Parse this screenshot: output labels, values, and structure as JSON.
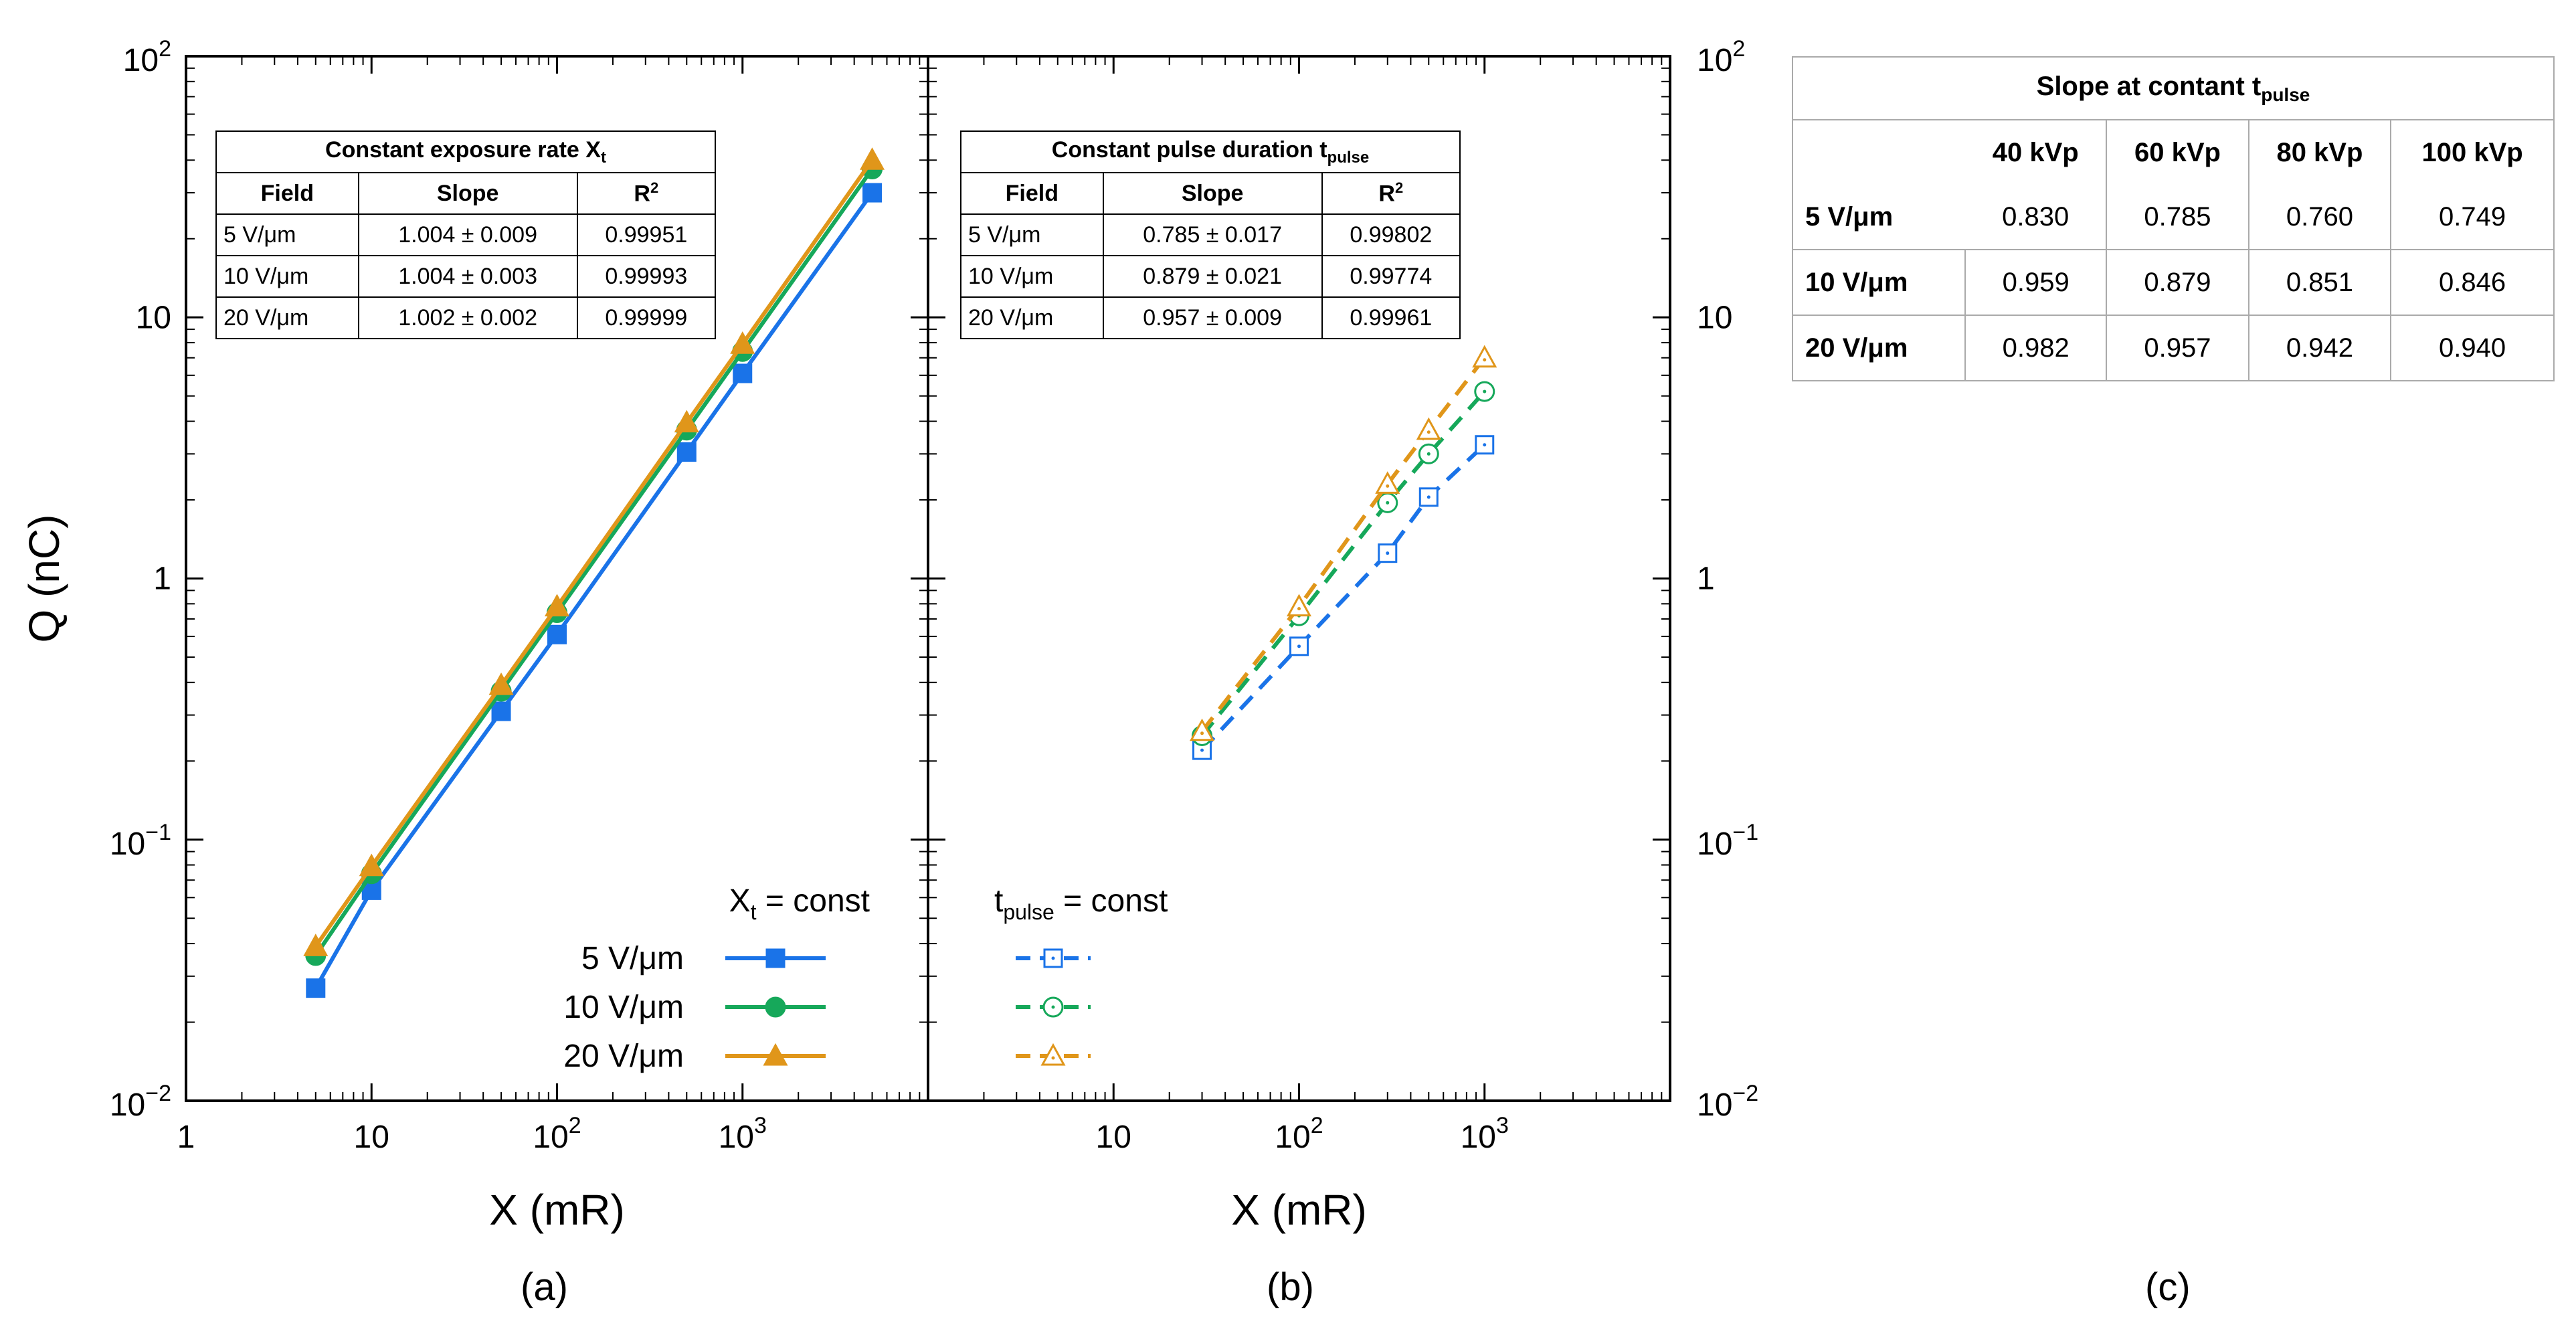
{
  "panel_labels": {
    "a": "(a)",
    "b": "(b)",
    "c": "(c)"
  },
  "axes": {
    "ylabel": "Q (nC)",
    "xlabel": "X (mR)",
    "yticks": [
      {
        "v": 0.01,
        "base": "10",
        "exp": "−2"
      },
      {
        "v": 0.1,
        "base": "10",
        "exp": "−1"
      },
      {
        "v": 1,
        "base": "1",
        "exp": ""
      },
      {
        "v": 10,
        "base": "10",
        "exp": ""
      },
      {
        "v": 100,
        "base": "10",
        "exp": "2"
      }
    ],
    "xticks_a": [
      {
        "v": 1,
        "base": "1",
        "exp": ""
      },
      {
        "v": 10,
        "base": "10",
        "exp": ""
      },
      {
        "v": 100,
        "base": "10",
        "exp": "2"
      },
      {
        "v": 1000,
        "base": "10",
        "exp": "3"
      }
    ],
    "xticks_b": [
      {
        "v": 10,
        "base": "10",
        "exp": ""
      },
      {
        "v": 100,
        "base": "10",
        "exp": "2"
      },
      {
        "v": 1000,
        "base": "10",
        "exp": "3"
      }
    ]
  },
  "colors": {
    "s5": "#1a73e8",
    "s10": "#16a85a",
    "s20": "#e0961a"
  },
  "chart_data": [
    {
      "type": "line",
      "panel": "a",
      "xscale": "log",
      "yscale": "log",
      "xlim": [
        1,
        10000
      ],
      "ylim": [
        0.01,
        100
      ],
      "xlabel": "X (mR)",
      "ylabel": "Q (nC)",
      "legend_title": "X_t = const",
      "legend_placement": "bottom-right",
      "series": [
        {
          "name": "5 V/μm",
          "marker": "square",
          "color": "#1a73e8",
          "x": [
            5,
            10,
            50,
            100,
            500,
            1000,
            5000
          ],
          "y": [
            0.027,
            0.064,
            0.31,
            0.61,
            3.05,
            6.1,
            30
          ]
        },
        {
          "name": "10 V/μm",
          "marker": "circle",
          "color": "#16a85a",
          "x": [
            5,
            10,
            50,
            100,
            500,
            1000,
            5000
          ],
          "y": [
            0.036,
            0.074,
            0.37,
            0.74,
            3.7,
            7.4,
            37
          ]
        },
        {
          "name": "20 V/μm",
          "marker": "triangle",
          "color": "#e0961a",
          "x": [
            5,
            10,
            50,
            100,
            500,
            1000,
            5000
          ],
          "y": [
            0.039,
            0.079,
            0.39,
            0.78,
            3.95,
            7.9,
            40
          ]
        }
      ]
    },
    {
      "type": "line",
      "panel": "b",
      "xscale": "log",
      "yscale": "log",
      "xlim": [
        1,
        10000
      ],
      "ylim": [
        0.01,
        100
      ],
      "xlabel": "X (mR)",
      "legend_title": "t_pulse = const",
      "legend_placement": "bottom-left",
      "series": [
        {
          "marker": "open-square",
          "color": "#1a73e8",
          "x": [
            30,
            100,
            300,
            500,
            1000
          ],
          "y": [
            0.22,
            0.55,
            1.25,
            2.05,
            3.25
          ]
        },
        {
          "marker": "open-circle",
          "color": "#16a85a",
          "x": [
            30,
            100,
            300,
            500,
            1000
          ],
          "y": [
            0.25,
            0.72,
            1.95,
            3.0,
            5.2
          ]
        },
        {
          "marker": "open-triangle",
          "color": "#e0961a",
          "x": [
            30,
            100,
            300,
            500,
            1000
          ],
          "y": [
            0.26,
            0.78,
            2.3,
            3.7,
            7.0
          ]
        }
      ]
    },
    {
      "type": "table",
      "panel": "c",
      "title_main": "Slope at contant t",
      "title_sub": "pulse",
      "columns": [
        "",
        "40 kVp",
        "60 kVp",
        "80 kVp",
        "100 kVp"
      ],
      "rows": [
        {
          "label": "5 V/μm",
          "values": [
            "0.830",
            "0.785",
            "0.760",
            "0.749"
          ]
        },
        {
          "label": "10 V/μm",
          "values": [
            "0.959",
            "0.879",
            "0.851",
            "0.846"
          ]
        },
        {
          "label": "20 V/μm",
          "values": [
            "0.982",
            "0.957",
            "0.942",
            "0.940"
          ]
        }
      ]
    }
  ],
  "legend_a": {
    "title_main": "X",
    "title_sub": "t",
    "title_rest": " = const",
    "items": [
      "5 V/μm",
      "10 V/μm",
      "20 V/μm"
    ]
  },
  "legend_b": {
    "title_main": "t",
    "title_sub": "pulse",
    "title_rest": " = const"
  },
  "table_a": {
    "title_main": "Constant exposure rate X",
    "title_sub": "t",
    "headers": [
      "Field",
      "Slope",
      "R"
    ],
    "r_sup": "2",
    "rows": [
      {
        "field": "5 V/μm",
        "slope": "1.004 ± 0.009",
        "r2": "0.99951"
      },
      {
        "field": "10 V/μm",
        "slope": "1.004 ± 0.003",
        "r2": "0.99993"
      },
      {
        "field": "20 V/μm",
        "slope": "1.002 ± 0.002",
        "r2": "0.99999"
      }
    ]
  },
  "table_b": {
    "title_main": "Constant pulse duration t",
    "title_sub": "pulse",
    "headers": [
      "Field",
      "Slope",
      "R"
    ],
    "r_sup": "2",
    "rows": [
      {
        "field": "5 V/μm",
        "slope": "0.785 ± 0.017",
        "r2": "0.99802"
      },
      {
        "field": "10 V/μm",
        "slope": "0.879 ± 0.021",
        "r2": "0.99774"
      },
      {
        "field": "20 V/μm",
        "slope": "0.957 ± 0.009",
        "r2": "0.99961"
      }
    ]
  }
}
